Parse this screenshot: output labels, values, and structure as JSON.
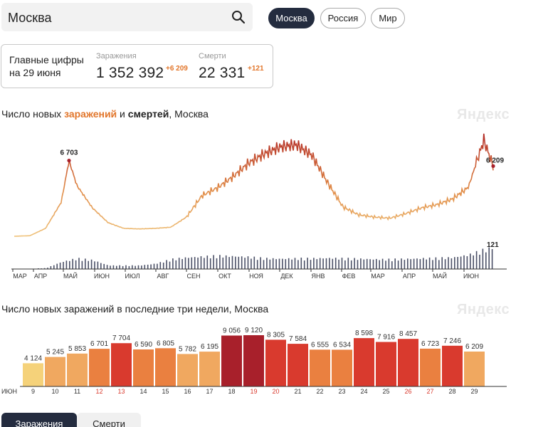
{
  "search": {
    "value": "Москва"
  },
  "region_tabs": [
    {
      "label": "Москва",
      "active": true
    },
    {
      "label": "Россия",
      "active": false
    },
    {
      "label": "Мир",
      "active": false
    }
  ],
  "stats": {
    "title_line1": "Главные цифры",
    "title_line2": "на 29 июня",
    "cases_label": "Заражения",
    "cases_value": "1 352 392",
    "cases_delta": "+6 209",
    "deaths_label": "Смерти",
    "deaths_value": "22 331",
    "deaths_delta": "+121"
  },
  "chart1": {
    "title_pre": "Число новых ",
    "title_cases": "заражений",
    "title_mid": " и ",
    "title_deaths": "смертей",
    "title_post": ", Москва",
    "brand": "Яндекс",
    "peak_label": "6 703",
    "last_label": "6 209",
    "deaths_last_label": "121"
  },
  "chart2": {
    "title": "Число новых заражений в последние три недели, Москва",
    "brand": "Яндекс",
    "month_label": "ИЮН"
  },
  "colors": {
    "low": "#f5d27a",
    "mid": "#f0a860",
    "orange": "#ea8040",
    "red": "#d93a2e",
    "dark_red": "#a8202b",
    "accent": "#e2762b",
    "nav": "#242c3f",
    "deaths_bars": "#4a4f66"
  },
  "chart_data": [
    {
      "type": "line",
      "title": "Число новых заражений и смертей, Москва",
      "x_ticks": [
        "МАР",
        "АПР",
        "МАЙ",
        "ИЮН",
        "ИЮЛ",
        "АВГ",
        "СЕН",
        "ОКТ",
        "НОЯ",
        "ДЕК",
        "ЯНВ",
        "ФЕВ",
        "МАР",
        "АПР",
        "МАЙ",
        "ИЮН"
      ],
      "series": [
        {
          "name": "заражений",
          "points": [
            [
              0,
              0
            ],
            [
              1,
              50
            ],
            [
              2,
              700
            ],
            [
              3,
              3000
            ],
            [
              3.5,
              6703
            ],
            [
              4,
              4500
            ],
            [
              5,
              2500
            ],
            [
              6,
              1200
            ],
            [
              7,
              700
            ],
            [
              8,
              650
            ],
            [
              9,
              700
            ],
            [
              10,
              800
            ],
            [
              11,
              1700
            ],
            [
              12,
              3600
            ],
            [
              13,
              4300
            ],
            [
              14,
              5300
            ],
            [
              15,
              6500
            ],
            [
              16,
              7300
            ],
            [
              17,
              7900
            ],
            [
              18,
              8100
            ],
            [
              19,
              7200
            ],
            [
              20,
              4800
            ],
            [
              21,
              2600
            ],
            [
              22,
              1900
            ],
            [
              23,
              1700
            ],
            [
              24,
              1600
            ],
            [
              25,
              2000
            ],
            [
              26,
              2500
            ],
            [
              27,
              2800
            ],
            [
              28,
              3300
            ],
            [
              29,
              4300
            ],
            [
              30,
              8500
            ],
            [
              30.6,
              6209
            ]
          ]
        },
        {
          "name": "смертей",
          "points": [
            [
              0,
              0
            ],
            [
              2,
              5
            ],
            [
              3,
              40
            ],
            [
              4,
              60
            ],
            [
              5,
              50
            ],
            [
              6,
              20
            ],
            [
              7,
              20
            ],
            [
              8,
              20
            ],
            [
              9,
              30
            ],
            [
              10,
              55
            ],
            [
              11,
              65
            ],
            [
              12,
              70
            ],
            [
              13,
              75
            ],
            [
              14,
              72
            ],
            [
              15,
              68
            ],
            [
              16,
              60
            ],
            [
              17,
              58
            ],
            [
              18,
              60
            ],
            [
              19,
              60
            ],
            [
              20,
              62
            ],
            [
              21,
              60
            ],
            [
              22,
              58
            ],
            [
              23,
              55
            ],
            [
              24,
              55
            ],
            [
              25,
              57
            ],
            [
              26,
              60
            ],
            [
              27,
              62
            ],
            [
              28,
              65
            ],
            [
              29,
              80
            ],
            [
              30,
              110
            ],
            [
              30.6,
              121
            ]
          ]
        }
      ],
      "annotations": [
        "6 703",
        "6 209",
        "121"
      ]
    },
    {
      "type": "bar",
      "title": "Число новых заражений в последние три недели, Москва",
      "categories": [
        "9",
        "10",
        "11",
        "12",
        "13",
        "14",
        "15",
        "16",
        "17",
        "18",
        "19",
        "20",
        "21",
        "22",
        "23",
        "24",
        "25",
        "26",
        "27",
        "28",
        "29"
      ],
      "values": [
        4124,
        5245,
        5853,
        6701,
        7704,
        6590,
        6805,
        5782,
        6195,
        9056,
        9120,
        8305,
        7584,
        6555,
        6534,
        8598,
        7916,
        8457,
        6723,
        7246,
        6209
      ],
      "value_labels": [
        "4 124",
        "5 245",
        "5 853",
        "6 701",
        "7 704",
        "6 590",
        "6 805",
        "5 782",
        "6 195",
        "9 056",
        "9 120",
        "8 305",
        "7 584",
        "6 555",
        "6 534",
        "8 598",
        "7 916",
        "8 457",
        "6 723",
        "7 246",
        "6 209"
      ],
      "weekend": [
        false,
        false,
        false,
        true,
        true,
        false,
        false,
        false,
        false,
        false,
        true,
        true,
        false,
        false,
        false,
        false,
        false,
        true,
        true,
        false,
        false
      ],
      "ylim": [
        0,
        9120
      ]
    }
  ],
  "bottom_tabs": [
    {
      "label": "Заражения",
      "active": true
    },
    {
      "label": "Смерти",
      "active": false
    }
  ]
}
